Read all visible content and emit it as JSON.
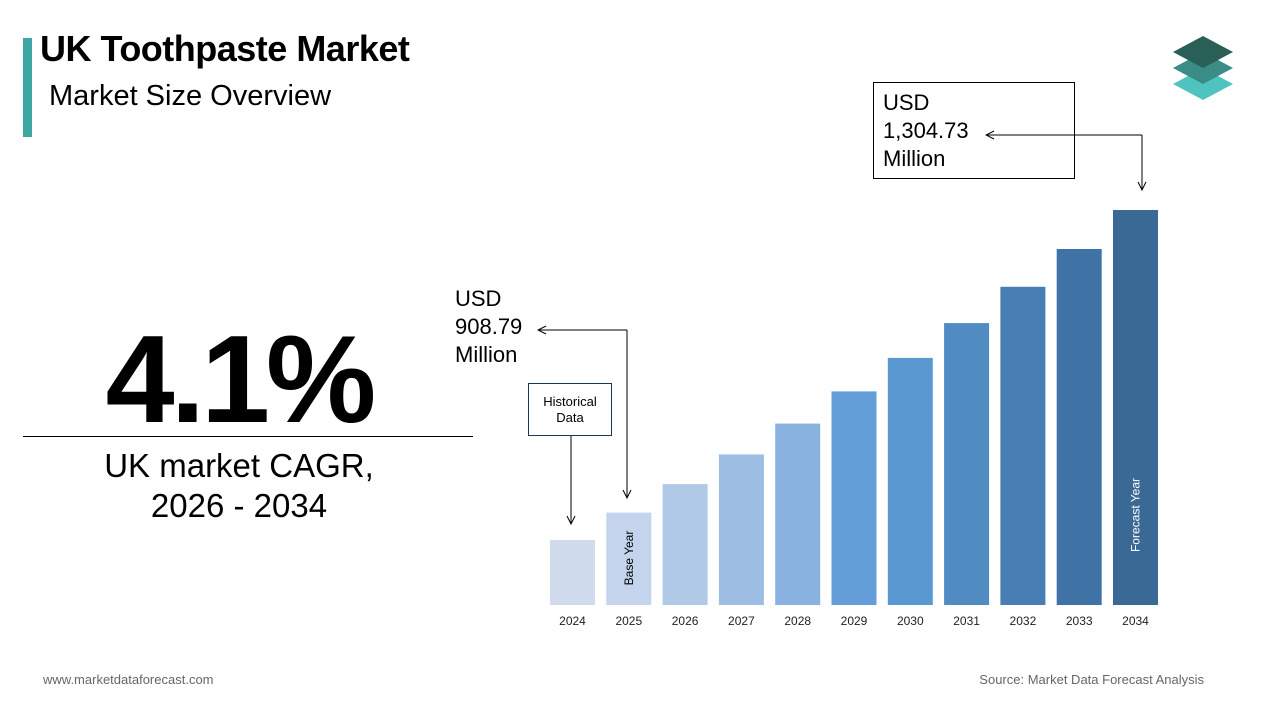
{
  "header": {
    "title": "UK Toothpaste Market",
    "subtitle": "Market Size Overview"
  },
  "kpi": {
    "cagr_value": "4.1%",
    "cagr_label_line1": "UK market CAGR,",
    "cagr_label_line2": "2026 - 2034"
  },
  "callouts": {
    "end": {
      "line1": "USD",
      "line2": "1,304.73",
      "line3": "Million"
    },
    "start": {
      "line1": "USD",
      "line2": "908.79",
      "line3": "Million"
    },
    "historical": {
      "line1": "Historical",
      "line2": "Data"
    }
  },
  "footer": {
    "website": "www.marketdataforecast.com",
    "source": "Source: Market Data Forecast Analysis"
  },
  "chart_data": {
    "type": "bar",
    "categories": [
      "2024",
      "2025",
      "2026",
      "2027",
      "2028",
      "2029",
      "2030",
      "2031",
      "2032",
      "2033",
      "2034"
    ],
    "values": [
      872.96,
      908.79,
      946.08,
      984.9,
      1025.31,
      1067.38,
      1111.18,
      1156.78,
      1204.25,
      1253.66,
      1304.73
    ],
    "bar_labels": {
      "2025": "Base Year",
      "2034": "Forecast Year"
    },
    "colors": [
      "#d0dcee",
      "#c3d4ec",
      "#b0c9e7",
      "#9dbde3",
      "#89b2e0",
      "#649ed8",
      "#5a98d2",
      "#508bc2",
      "#477eb4",
      "#3f73a5",
      "#3b6995"
    ]
  }
}
